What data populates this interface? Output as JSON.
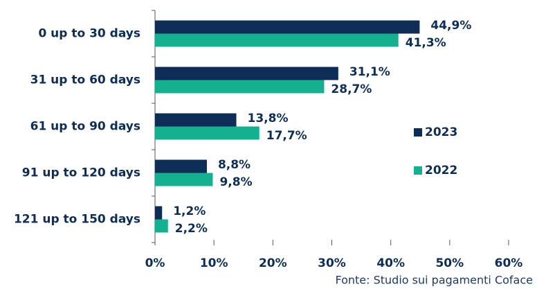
{
  "chart_data": {
    "type": "bar",
    "orientation": "horizontal",
    "categories": [
      "0 up to 30 days",
      "31 up to 60 days",
      "61 up to 90 days",
      "91 up to 120 days",
      "121 up to 150 days"
    ],
    "series": [
      {
        "name": "2023",
        "color": "#0d2d57",
        "values": [
          44.9,
          31.1,
          13.8,
          8.8,
          1.2
        ],
        "value_labels": [
          "44,9%",
          "31,1%",
          "13,8%",
          "8,8%",
          "1,2%"
        ]
      },
      {
        "name": "2022",
        "color": "#14b08f",
        "values": [
          41.3,
          28.7,
          17.7,
          9.8,
          2.2
        ],
        "value_labels": [
          "41,3%",
          "28,7%",
          "17,7%",
          "9,8%",
          "2,2%"
        ]
      }
    ],
    "xlim": [
      0,
      60
    ],
    "xticks": [
      {
        "value": 0,
        "label": "0%"
      },
      {
        "value": 10,
        "label": "10%"
      },
      {
        "value": 20,
        "label": "20%"
      },
      {
        "value": 30,
        "label": "30%"
      },
      {
        "value": 40,
        "label": "40%"
      },
      {
        "value": 50,
        "label": "50%"
      },
      {
        "value": 60,
        "label": "60%"
      }
    ],
    "legend": "right",
    "source": "Fonte: Studio sui pagamenti Coface"
  }
}
